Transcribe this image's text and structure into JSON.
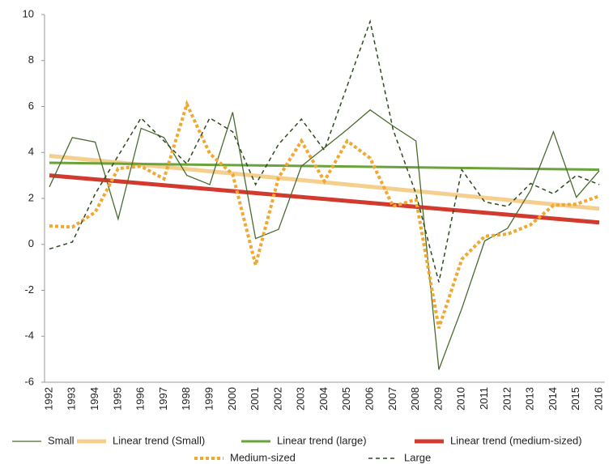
{
  "chart_data": {
    "type": "line",
    "categories": [
      "1992",
      "1993",
      "1994",
      "1995",
      "1996",
      "1997",
      "1998",
      "1999",
      "2000",
      "2001",
      "2002",
      "2003",
      "2004",
      "2005",
      "2006",
      "2007",
      "2008",
      "2009",
      "2010",
      "2011",
      "2012",
      "2013",
      "2014",
      "2015",
      "2016"
    ],
    "ylim": [
      -6,
      10
    ],
    "yticks": [
      -6,
      -4,
      -2,
      0,
      2,
      4,
      6,
      8,
      10
    ],
    "series": [
      {
        "name": "Small",
        "color": "#4a6b2f",
        "width": 1.3,
        "style": "solid",
        "values": [
          2.5,
          4.65,
          4.45,
          1.1,
          5.05,
          4.65,
          3.0,
          2.6,
          5.75,
          0.25,
          0.65,
          3.4,
          4.2,
          5.0,
          5.85,
          5.15,
          4.5,
          -5.45,
          -2.8,
          0.15,
          0.7,
          2.35,
          4.9,
          2.05,
          3.2
        ]
      },
      {
        "name": "Linear trend (Small)",
        "color": "#f5cf8e",
        "width": 5,
        "style": "solid",
        "x": [
          "1992",
          "2016"
        ],
        "values": [
          3.85,
          1.55
        ]
      },
      {
        "name": "Linear trend (large)",
        "color": "#6aa33a",
        "width": 3,
        "style": "solid",
        "x": [
          "1992",
          "2016"
        ],
        "values": [
          3.55,
          3.25
        ]
      },
      {
        "name": "Linear trend (medium-sized)",
        "color": "#d23a2e",
        "width": 5,
        "style": "solid",
        "x": [
          "1992",
          "2016"
        ],
        "values": [
          3.0,
          0.95
        ]
      },
      {
        "name": "Medium-sized",
        "color": "#f0a830",
        "width": 4,
        "style": "dotted",
        "values": [
          0.8,
          0.75,
          1.4,
          3.3,
          3.4,
          2.85,
          6.1,
          3.95,
          3.05,
          -0.9,
          2.9,
          4.5,
          2.75,
          4.5,
          3.75,
          1.65,
          1.95,
          -3.65,
          -0.65,
          0.35,
          0.45,
          0.85,
          1.7,
          1.75,
          2.1
        ]
      },
      {
        "name": "Large",
        "color": "#2f4a1f",
        "width": 1.5,
        "style": "dashed",
        "values": [
          -0.2,
          0.1,
          2.2,
          3.85,
          5.5,
          4.5,
          3.5,
          5.5,
          4.9,
          2.6,
          4.35,
          5.45,
          4.1,
          6.9,
          9.7,
          5.0,
          2.2,
          -1.65,
          3.25,
          1.85,
          1.65,
          2.65,
          2.2,
          3.0,
          2.6
        ]
      }
    ]
  }
}
